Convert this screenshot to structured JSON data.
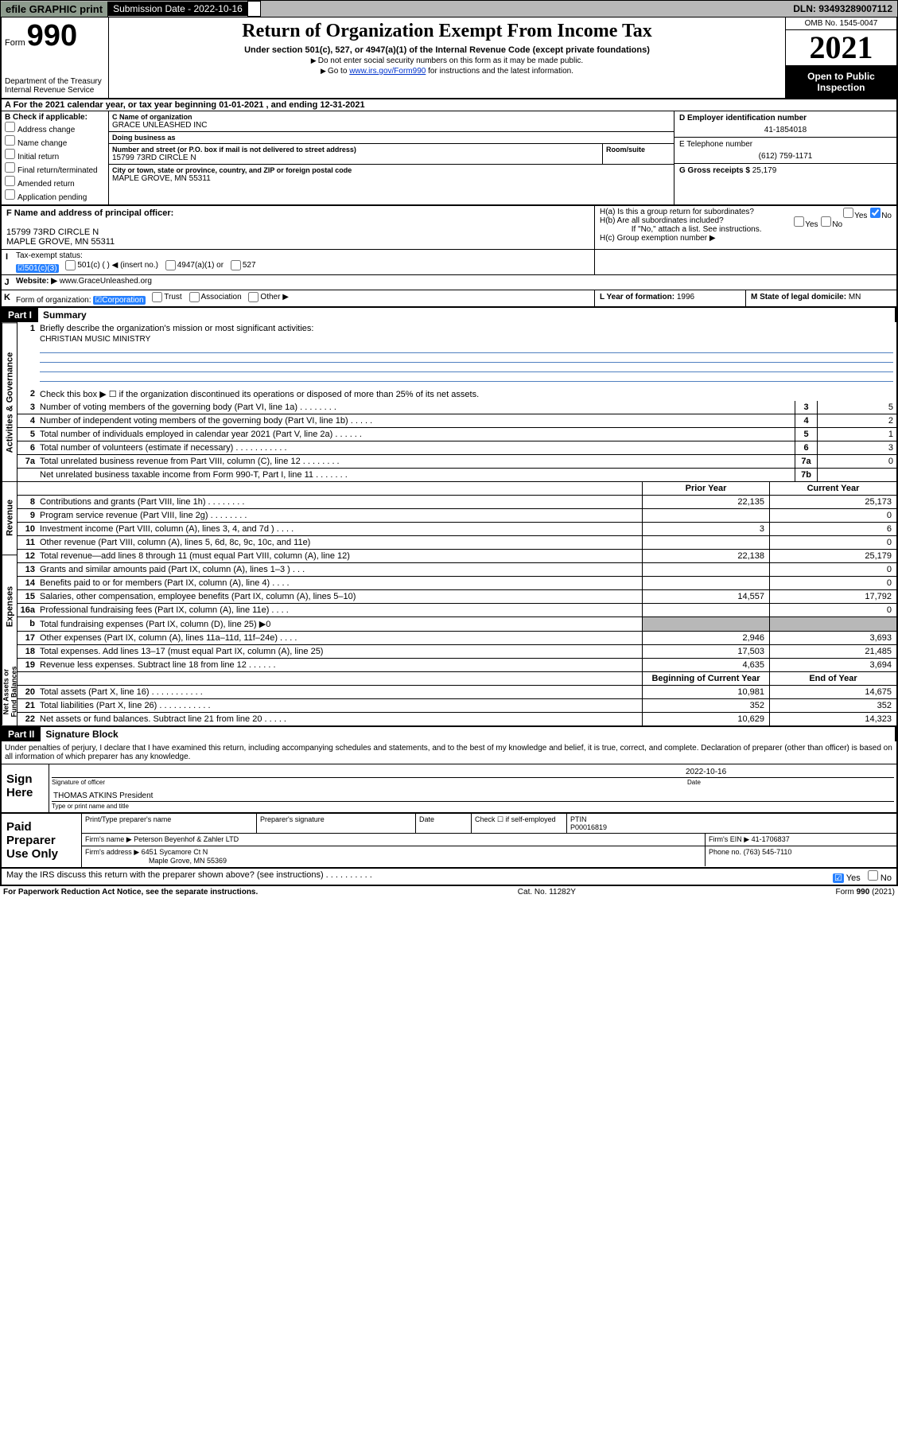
{
  "topbar": {
    "efile_btn": "efile GRAPHIC print",
    "subm_label": "Submission Date  -  2022-10-16",
    "dln": "DLN: 93493289007112"
  },
  "header": {
    "form_word": "Form",
    "form_num": "990",
    "title": "Return of Organization Exempt From Income Tax",
    "subtitle": "Under section 501(c), 527, or 4947(a)(1) of the Internal Revenue Code (except private foundations)",
    "note1": "Do not enter social security numbers on this form as it may be made public.",
    "note2_pre": "Go to ",
    "note2_link": "www.irs.gov/Form990",
    "note2_post": " for instructions and the latest information.",
    "dept": "Department of the Treasury\nInternal Revenue Service",
    "omb": "OMB No. 1545-0047",
    "year": "2021",
    "inspection": "Open to Public Inspection"
  },
  "rowA": "A  For the 2021 calendar year, or tax year beginning 01-01-2021    , and ending 12-31-2021",
  "secB": {
    "label": "B Check if applicable:",
    "opts": [
      "Address change",
      "Name change",
      "Initial return",
      "Final return/terminated",
      "Amended return",
      "Application pending"
    ]
  },
  "secC": {
    "name_label": "C Name of organization",
    "name": "GRACE UNLEASHED INC",
    "dba_label": "Doing business as",
    "dba": "",
    "street_label": "Number and street (or P.O. box if mail is not delivered to street address)",
    "room_label": "Room/suite",
    "street": "15799 73RD CIRCLE N",
    "city_label": "City or town, state or province, country, and ZIP or foreign postal code",
    "city": "MAPLE GROVE, MN  55311"
  },
  "secD": {
    "label": "D Employer identification number",
    "value": "41-1854018"
  },
  "secE": {
    "label": "E Telephone number",
    "value": "(612) 759-1171"
  },
  "secG": {
    "label": "G Gross receipts $",
    "value": "25,179"
  },
  "secF": {
    "label": "F  Name and address of principal officer:",
    "line1": "15799 73RD CIRCLE N",
    "line2": "MAPLE GROVE, MN  55311"
  },
  "secH": {
    "a": "H(a)  Is this a group return for subordinates?",
    "b": "H(b)  Are all subordinates included?",
    "bnote": "If \"No,\" attach a list. See instructions.",
    "c": "H(c)  Group exemption number ▶"
  },
  "secI": {
    "i": "I",
    "label": "Tax-exempt status:",
    "o1": "501(c)(3)",
    "o2": "501(c) (   ) ◀ (insert no.)",
    "o3": "4947(a)(1) or",
    "o4": "527"
  },
  "secJ": {
    "j": "J",
    "label": "Website: ▶",
    "value": "www.GraceUnleashed.org"
  },
  "secK": {
    "k": "K",
    "label": "Form of organization:",
    "o1": "Corporation",
    "o2": "Trust",
    "o3": "Association",
    "o4": "Other ▶"
  },
  "secL": {
    "label": "L Year of formation:",
    "value": "1996"
  },
  "secM": {
    "label": "M State of legal domicile:",
    "value": "MN"
  },
  "partI": {
    "num": "Part I",
    "title": "Summary"
  },
  "vtabs": {
    "ag": "Activities & Governance",
    "rev": "Revenue",
    "exp": "Expenses",
    "na": "Net Assets or\nFund Balances"
  },
  "summary": {
    "l1": "Briefly describe the organization's mission or most significant activities:",
    "mission": "CHRISTIAN MUSIC MINISTRY",
    "l2": "Check this box ▶ ☐  if the organization discontinued its operations or disposed of more than 25% of its net assets.",
    "lines": [
      {
        "n": "3",
        "d": "Number of voting members of the governing body (Part VI, line 1a)   .    .    .    .    .    .    .    .",
        "v": "5"
      },
      {
        "n": "4",
        "d": "Number of independent voting members of the governing body (Part VI, line 1b)    .    .    .    .    .",
        "v": "2"
      },
      {
        "n": "5",
        "d": "Total number of individuals employed in calendar year 2021 (Part V, line 2a)    .    .    .    .    .    .",
        "v": "1"
      },
      {
        "n": "6",
        "d": "Total number of volunteers (estimate if necessary)    .    .    .    .    .    .    .    .    .    .    .",
        "v": "3"
      },
      {
        "n": "7a",
        "d": "Total unrelated business revenue from Part VIII, column (C), line 12   .    .    .    .    .    .    .    .",
        "v": "0"
      },
      {
        "n": "",
        "d": "Net unrelated business taxable income from Form 990-T, Part I, line 11   .    .    .    .    .    .    .",
        "b": "7b",
        "v": ""
      }
    ],
    "col_hdr_prior": "Prior Year",
    "col_hdr_curr": "Current Year",
    "rev": [
      {
        "n": "8",
        "d": "Contributions and grants (Part VIII, line 1h)    .    .    .    .    .    .    .    .",
        "p": "22,135",
        "c": "25,173"
      },
      {
        "n": "9",
        "d": "Program service revenue (Part VIII, line 2g)    .    .    .    .    .    .    .    .",
        "p": "",
        "c": "0"
      },
      {
        "n": "10",
        "d": "Investment income (Part VIII, column (A), lines 3, 4, and 7d )    .    .    .    .",
        "p": "3",
        "c": "6"
      },
      {
        "n": "11",
        "d": "Other revenue (Part VIII, column (A), lines 5, 6d, 8c, 9c, 10c, and 11e)",
        "p": "",
        "c": "0"
      },
      {
        "n": "12",
        "d": "Total revenue—add lines 8 through 11 (must equal Part VIII, column (A), line 12)",
        "p": "22,138",
        "c": "25,179"
      }
    ],
    "exp": [
      {
        "n": "13",
        "d": "Grants and similar amounts paid (Part IX, column (A), lines 1–3 )    .    .    .",
        "p": "",
        "c": "0"
      },
      {
        "n": "14",
        "d": "Benefits paid to or for members (Part IX, column (A), line 4)    .    .    .    .",
        "p": "",
        "c": "0"
      },
      {
        "n": "15",
        "d": "Salaries, other compensation, employee benefits (Part IX, column (A), lines 5–10)",
        "p": "14,557",
        "c": "17,792"
      },
      {
        "n": "16a",
        "d": "Professional fundraising fees (Part IX, column (A), line 11e)    .    .    .    .",
        "p": "",
        "c": "0"
      },
      {
        "n": "b",
        "d": "Total fundraising expenses (Part IX, column (D), line 25) ▶0",
        "p": "shade",
        "c": "shade"
      },
      {
        "n": "17",
        "d": "Other expenses (Part IX, column (A), lines 11a–11d, 11f–24e)    .    .    .    .",
        "p": "2,946",
        "c": "3,693"
      },
      {
        "n": "18",
        "d": "Total expenses. Add lines 13–17 (must equal Part IX, column (A), line 25)",
        "p": "17,503",
        "c": "21,485"
      },
      {
        "n": "19",
        "d": "Revenue less expenses. Subtract line 18 from line 12    .    .    .    .    .    .",
        "p": "4,635",
        "c": "3,694"
      }
    ],
    "col_hdr_beg": "Beginning of Current Year",
    "col_hdr_end": "End of Year",
    "na": [
      {
        "n": "20",
        "d": "Total assets (Part X, line 16)    .    .    .    .    .    .    .    .    .    .    .",
        "p": "10,981",
        "c": "14,675"
      },
      {
        "n": "21",
        "d": "Total liabilities (Part X, line 26)    .    .    .    .    .    .    .    .    .    .    .",
        "p": "352",
        "c": "352"
      },
      {
        "n": "22",
        "d": "Net assets or fund balances. Subtract line 21 from line 20    .    .    .    .    .",
        "p": "10,629",
        "c": "14,323"
      }
    ]
  },
  "partII": {
    "num": "Part II",
    "title": "Signature Block"
  },
  "sig": {
    "decl": "Under penalties of perjury, I declare that I have examined this return, including accompanying schedules and statements, and to the best of my knowledge and belief, it is true, correct, and complete. Declaration of preparer (other than officer) is based on all information of which preparer has any knowledge.",
    "sign_here": "Sign Here",
    "date": "2022-10-16",
    "sig_officer": "Signature of officer",
    "date_lbl": "Date",
    "officer_name": "THOMAS ATKINS  President",
    "officer_lbl": "Type or print name and title",
    "paid_lbl": "Paid Preparer Use Only",
    "col_name": "Print/Type preparer's name",
    "col_sig": "Preparer's signature",
    "col_date": "Date",
    "col_check": "Check ☐ if self-employed",
    "col_ptin": "PTIN",
    "ptin": "P00016819",
    "firm_name_lbl": "Firm's name     ▶",
    "firm_name": "Peterson Beyenhof & Zahler LTD",
    "firm_ein_lbl": "Firm's EIN ▶",
    "firm_ein": "41-1706837",
    "firm_addr_lbl": "Firm's address ▶",
    "firm_addr1": "6451 Sycamore Ct N",
    "firm_addr2": "Maple Grove, MN 55369",
    "firm_phone_lbl": "Phone no.",
    "firm_phone": "(763) 545-7110"
  },
  "discuss": "May the IRS discuss this return with the preparer shown above? (see instructions)    .    .    .    .    .    .    .    .    .    .",
  "footer": {
    "left": "For Paperwork Reduction Act Notice, see the separate instructions.",
    "mid": "Cat. No. 11282Y",
    "right_pre": "Form ",
    "right_num": "990",
    "right_post": " (2021)"
  }
}
